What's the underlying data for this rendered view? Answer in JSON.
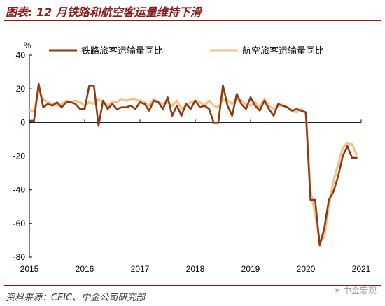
{
  "title": "图表: 12 月铁路和航空客运量维持下滑",
  "source": "资料来源：CEIC、中金公司研究部",
  "watermark": "中金宏观",
  "colors": {
    "rail": "#8b3a12",
    "air": "#f7c089",
    "title": "#8b1a1a"
  },
  "chart_data": {
    "type": "line",
    "title": "",
    "xlabel": "",
    "ylabel": "%",
    "ylim": [
      -80,
      40
    ],
    "yticks": [
      -80,
      -60,
      -40,
      -20,
      0,
      20,
      40
    ],
    "xticks": [
      "2015",
      "2016",
      "2017",
      "2018",
      "2019",
      "2020",
      "2021"
    ],
    "x_start": "2015-01",
    "grid": false,
    "legend": "top",
    "series": [
      {
        "name": "铁路旅客运输量同比",
        "color": "#8b3a12",
        "values": [
          1,
          1,
          23,
          9,
          11,
          10,
          12,
          9,
          12,
          12,
          11,
          8,
          8,
          22,
          22,
          -2,
          13,
          8,
          11,
          8,
          9,
          9,
          10,
          8,
          12,
          11,
          7,
          13,
          12,
          8,
          15,
          4,
          10,
          4,
          11,
          8,
          13,
          9,
          10,
          8,
          0,
          0,
          22,
          10,
          4,
          17,
          11,
          8,
          15,
          10,
          7,
          13,
          8,
          4,
          11,
          10,
          9,
          7,
          8,
          7,
          6,
          -46,
          -46,
          -73,
          -63,
          -46,
          -41,
          -32,
          -20,
          -14,
          -21,
          -21
        ]
      },
      {
        "name": "航空旅客运输量同比",
        "color": "#f7c089",
        "values": [
          7,
          7,
          19,
          14,
          12,
          11,
          10,
          11,
          13,
          12,
          13,
          12,
          10,
          12,
          11,
          14,
          12,
          10,
          12,
          12,
          14,
          13,
          14,
          14,
          13,
          12,
          10,
          14,
          12,
          11,
          12,
          10,
          13,
          8,
          10,
          12,
          13,
          12,
          10,
          13,
          10,
          9,
          14,
          13,
          11,
          14,
          13,
          11,
          10,
          12,
          9,
          14,
          10,
          8,
          10,
          10,
          9,
          7,
          6,
          8,
          5,
          -41,
          -54,
          -71,
          -68,
          -49,
          -35,
          -25,
          -15,
          -12,
          -13,
          -19
        ]
      }
    ]
  }
}
